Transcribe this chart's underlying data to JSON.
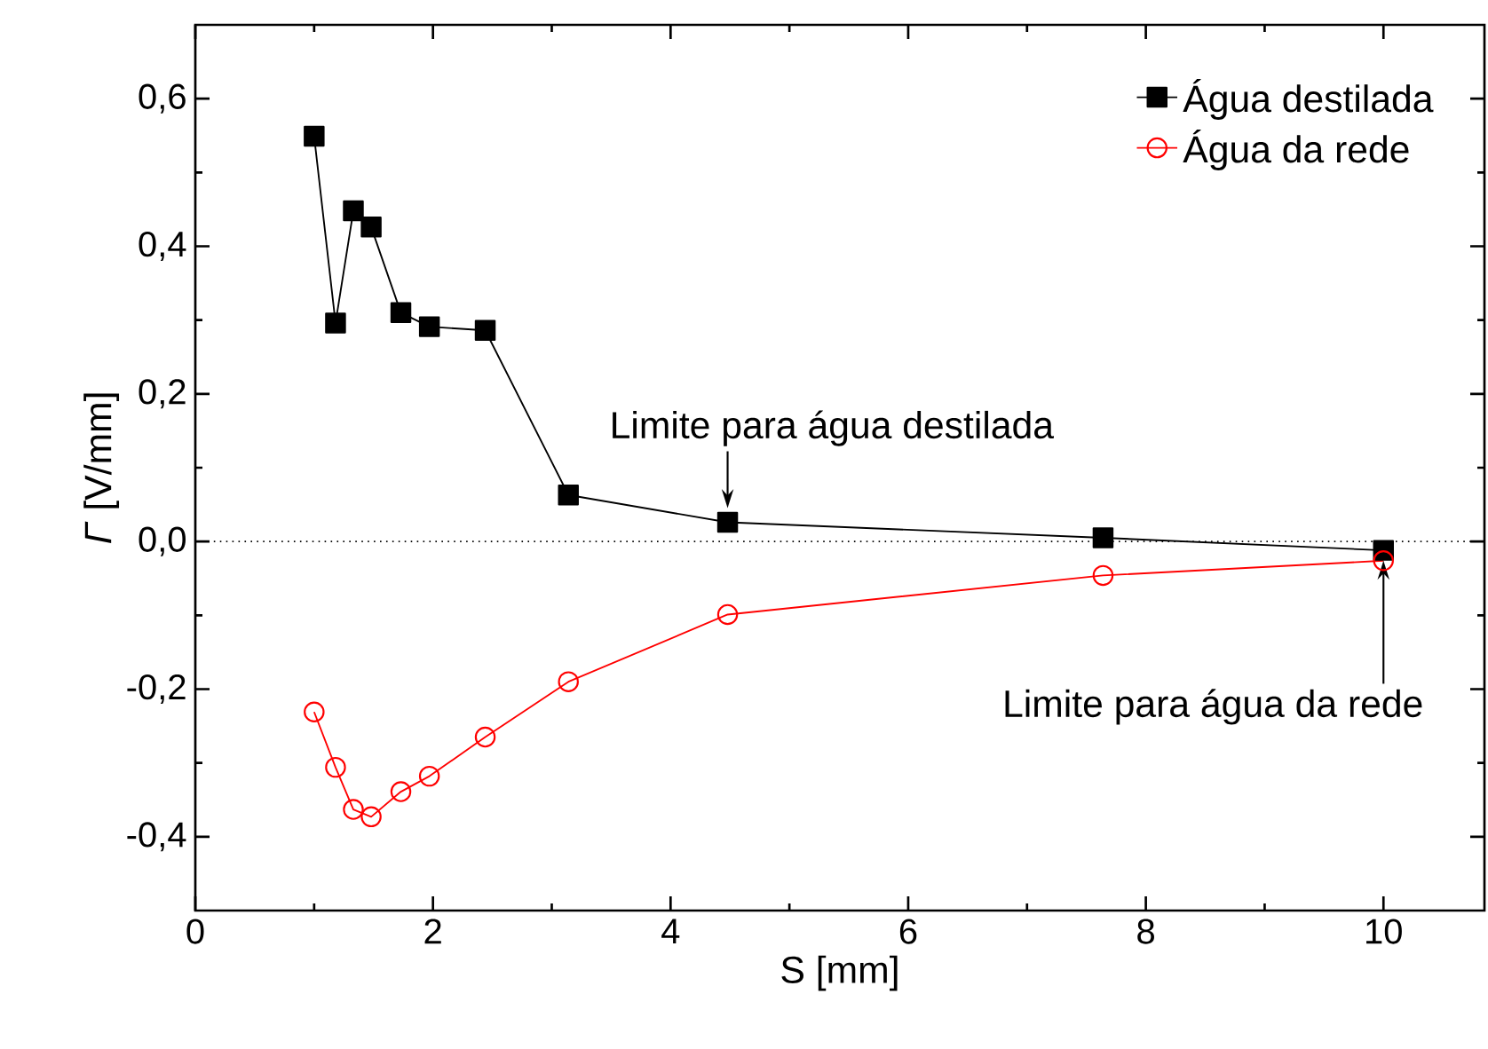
{
  "chart_data": {
    "type": "line",
    "xlabel": "S [mm]",
    "ylabel": "*Γ* [V/mm]",
    "x": [
      1.0,
      1.18,
      1.33,
      1.48,
      1.73,
      1.97,
      2.44,
      3.14,
      4.48,
      7.64,
      10.0
    ],
    "series": [
      {
        "name": "Água destilada",
        "color": "#000000",
        "marker": "square",
        "values": [
          0.549,
          0.296,
          0.448,
          0.426,
          0.31,
          0.291,
          0.286,
          0.063,
          0.026,
          0.005,
          -0.012
        ]
      },
      {
        "name": "Água da rede",
        "color": "#ff0000",
        "marker": "circle",
        "values": [
          -0.231,
          -0.306,
          -0.363,
          -0.373,
          -0.339,
          -0.318,
          -0.265,
          -0.19,
          -0.099,
          -0.046,
          -0.026
        ]
      }
    ],
    "xlim": [
      0,
      10.85
    ],
    "ylim": [
      -0.5,
      0.7
    ],
    "xticks": [
      0,
      2,
      4,
      6,
      8,
      10
    ],
    "yticks": [
      {
        "value": -0.4,
        "label": "-0,4"
      },
      {
        "value": -0.2,
        "label": "-0,2"
      },
      {
        "value": 0.0,
        "label": "0,0"
      },
      {
        "value": 0.2,
        "label": "0,2"
      },
      {
        "value": 0.4,
        "label": "0,4"
      },
      {
        "value": 0.6,
        "label": "0,6"
      }
    ],
    "ref_lines": [
      {
        "axis": "y",
        "value": 0,
        "line_style": "dotted",
        "color": "#000000"
      }
    ],
    "annotations": [
      {
        "text": "Limite para água destilada",
        "x": 4.48,
        "y": 0.026
      },
      {
        "text": "Limite para água da rede",
        "x": 10.0,
        "y": -0.026
      }
    ],
    "legend": "top right",
    "grid": false,
    "line_style": "solid"
  }
}
